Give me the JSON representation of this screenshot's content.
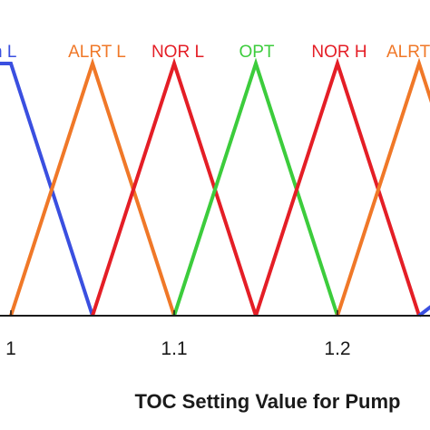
{
  "chart_data": {
    "type": "line",
    "title": "",
    "xlabel": "TOC Setting Value for Pump",
    "ylabel": "",
    "xlim": [
      0.99,
      1.29
    ],
    "ylim": [
      0,
      1
    ],
    "grid": false,
    "x_ticks": [
      {
        "value": 1.0,
        "label": "1"
      },
      {
        "value": 1.1,
        "label": "1.1"
      },
      {
        "value": 1.2,
        "label": "1.2"
      }
    ],
    "series": [
      {
        "name": "n L",
        "color": "#3a4fe0",
        "points": [
          [
            0.99,
            1
          ],
          [
            1.0,
            1
          ],
          [
            1.05,
            0
          ]
        ]
      },
      {
        "name": "ALRT L",
        "color": "#f07828",
        "points": [
          [
            1.0,
            0
          ],
          [
            1.05,
            1
          ],
          [
            1.1,
            0
          ]
        ]
      },
      {
        "name": "NOR L",
        "color": "#e41e26",
        "points": [
          [
            1.05,
            0
          ],
          [
            1.1,
            1
          ],
          [
            1.15,
            0
          ]
        ]
      },
      {
        "name": "OPT",
        "color": "#3ccc3c",
        "points": [
          [
            1.1,
            0
          ],
          [
            1.15,
            1
          ],
          [
            1.2,
            0
          ]
        ]
      },
      {
        "name": "NOR H",
        "color": "#e41e26",
        "points": [
          [
            1.15,
            0
          ],
          [
            1.2,
            1
          ],
          [
            1.25,
            0
          ]
        ]
      },
      {
        "name": "ALRT",
        "color": "#f07828",
        "points": [
          [
            1.2,
            0
          ],
          [
            1.25,
            1
          ],
          [
            1.29,
            0.2
          ]
        ]
      },
      {
        "name": "",
        "color": "#3a4fe0",
        "points": [
          [
            1.25,
            0
          ],
          [
            1.29,
            0.2
          ]
        ]
      }
    ]
  }
}
